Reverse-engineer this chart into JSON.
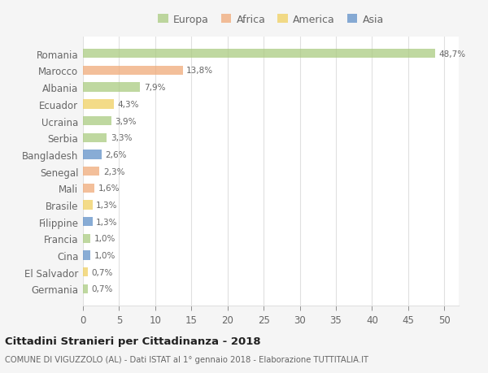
{
  "countries": [
    "Romania",
    "Marocco",
    "Albania",
    "Ecuador",
    "Ucraina",
    "Serbia",
    "Bangladesh",
    "Senegal",
    "Mali",
    "Brasile",
    "Filippine",
    "Francia",
    "Cina",
    "El Salvador",
    "Germania"
  ],
  "values": [
    48.7,
    13.8,
    7.9,
    4.3,
    3.9,
    3.3,
    2.6,
    2.3,
    1.6,
    1.3,
    1.3,
    1.0,
    1.0,
    0.7,
    0.7
  ],
  "labels": [
    "48,7%",
    "13,8%",
    "7,9%",
    "4,3%",
    "3,9%",
    "3,3%",
    "2,6%",
    "2,3%",
    "1,6%",
    "1,3%",
    "1,3%",
    "1,0%",
    "1,0%",
    "0,7%",
    "0,7%"
  ],
  "continents": [
    "Europa",
    "Africa",
    "Europa",
    "America",
    "Europa",
    "Europa",
    "Asia",
    "Africa",
    "Africa",
    "America",
    "Asia",
    "Europa",
    "Asia",
    "America",
    "Europa"
  ],
  "continent_colors": {
    "Europa": "#aacb80",
    "Africa": "#f0aa78",
    "America": "#f0d060",
    "Asia": "#6090c8"
  },
  "legend_order": [
    "Europa",
    "Africa",
    "America",
    "Asia"
  ],
  "xlim": [
    0,
    52
  ],
  "xticks": [
    0,
    5,
    10,
    15,
    20,
    25,
    30,
    35,
    40,
    45,
    50
  ],
  "title": "Cittadini Stranieri per Cittadinanza - 2018",
  "subtitle": "COMUNE DI VIGUZZOLO (AL) - Dati ISTAT al 1° gennaio 2018 - Elaborazione TUTTITALIA.IT",
  "bg_color": "#f5f5f5",
  "plot_bg_color": "#ffffff",
  "grid_color": "#e0e0e0",
  "label_color": "#666666",
  "bar_alpha": 0.75
}
